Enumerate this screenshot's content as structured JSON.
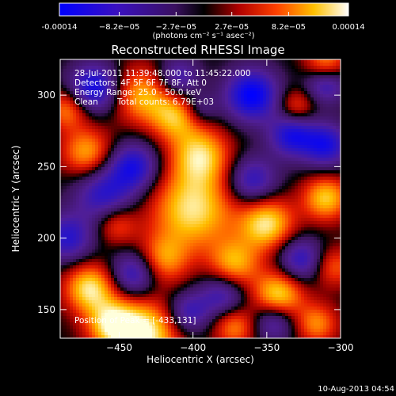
{
  "colors": {
    "background": "#000000",
    "text": "#ffffff",
    "colorbar_low": "#0000ff",
    "colorbar_mid": "#000000",
    "colorbar_high": "#ffffff"
  },
  "colorbar": {
    "tick_labels": [
      "-0.00014",
      "−8.2e−05",
      "−2.7e−05",
      "2.7e−05",
      "8.2e−05",
      "0.00014"
    ],
    "tick_values": [
      -0.00014,
      -8.2e-05,
      -2.7e-05,
      2.7e-05,
      8.2e-05,
      0.00014
    ],
    "range": [
      -0.00014,
      0.00014
    ],
    "units_label": "(photons cm⁻² s⁻¹ asec⁻²)"
  },
  "chart_data": {
    "type": "heatmap",
    "title": "Reconstructed RHESSI Image",
    "xlabel": "Heliocentric X (arcsec)",
    "ylabel": "Heliocentric Y (arcsec)",
    "xlim": [
      -490,
      -300
    ],
    "ylim": [
      130,
      325
    ],
    "x_ticks": [
      -450,
      -400,
      -350,
      -300
    ],
    "y_ticks": [
      150,
      200,
      250,
      300
    ],
    "x_tick_labels": [
      "−450",
      "−400",
      "−350",
      "−300"
    ],
    "y_tick_labels": [
      "150",
      "200",
      "250",
      "300"
    ],
    "peak": {
      "x": -433,
      "y": 131
    },
    "blobs": [
      {
        "x": -433,
        "y": 133,
        "w": 1.0,
        "s": 16
      },
      {
        "x": -455,
        "y": 140,
        "w": 0.8,
        "s": 12
      },
      {
        "x": -470,
        "y": 165,
        "w": 0.9,
        "s": 12
      },
      {
        "x": -400,
        "y": 220,
        "w": 0.9,
        "s": 20
      },
      {
        "x": -395,
        "y": 258,
        "w": 0.8,
        "s": 14
      },
      {
        "x": -412,
        "y": 285,
        "w": 0.7,
        "s": 12
      },
      {
        "x": -435,
        "y": 300,
        "w": 0.7,
        "s": 14
      },
      {
        "x": -472,
        "y": 260,
        "w": 0.7,
        "s": 12
      },
      {
        "x": -485,
        "y": 290,
        "w": 0.6,
        "s": 10
      },
      {
        "x": -350,
        "y": 210,
        "w": 0.9,
        "s": 13
      },
      {
        "x": -310,
        "y": 228,
        "w": 0.8,
        "s": 11
      },
      {
        "x": -310,
        "y": 320,
        "w": 0.9,
        "s": 10
      },
      {
        "x": -330,
        "y": 292,
        "w": 0.5,
        "s": 9
      },
      {
        "x": -342,
        "y": 160,
        "w": 0.9,
        "s": 12
      },
      {
        "x": -372,
        "y": 182,
        "w": 0.7,
        "s": 12
      },
      {
        "x": -372,
        "y": 138,
        "w": 0.6,
        "s": 10
      },
      {
        "x": -420,
        "y": 185,
        "w": 0.6,
        "s": 12
      },
      {
        "x": -452,
        "y": 210,
        "w": 0.5,
        "s": 10
      },
      {
        "x": -316,
        "y": 140,
        "w": 0.6,
        "s": 10
      },
      {
        "x": -305,
        "y": 180,
        "w": 0.5,
        "s": 10
      },
      {
        "x": -467,
        "y": 305,
        "w": -0.9,
        "s": 12
      },
      {
        "x": -460,
        "y": 230,
        "w": -0.7,
        "s": 14
      },
      {
        "x": -440,
        "y": 250,
        "w": -0.8,
        "s": 12
      },
      {
        "x": -360,
        "y": 300,
        "w": -1.0,
        "s": 13
      },
      {
        "x": -333,
        "y": 272,
        "w": -0.8,
        "s": 11
      },
      {
        "x": -310,
        "y": 310,
        "w": -0.9,
        "s": 10
      },
      {
        "x": -360,
        "y": 240,
        "w": -0.7,
        "s": 12
      },
      {
        "x": -485,
        "y": 200,
        "w": -0.7,
        "s": 12
      },
      {
        "x": -440,
        "y": 175,
        "w": -0.7,
        "s": 11
      },
      {
        "x": -380,
        "y": 160,
        "w": -0.6,
        "s": 11
      },
      {
        "x": -310,
        "y": 265,
        "w": -0.8,
        "s": 11
      },
      {
        "x": -327,
        "y": 185,
        "w": -0.7,
        "s": 11
      },
      {
        "x": -345,
        "y": 142,
        "w": -0.6,
        "s": 10
      },
      {
        "x": -403,
        "y": 148,
        "w": -0.6,
        "s": 10
      },
      {
        "x": -410,
        "y": 312,
        "w": -0.6,
        "s": 10
      },
      {
        "x": -395,
        "y": 290,
        "w": -0.4,
        "s": 8
      }
    ]
  },
  "annotations": {
    "time_range": "28-Jul-2011 11:39:48.000 to 11:45:22.000",
    "detectors": "Detectors: 4F 5F 6F 7F 8F, Att 0",
    "energy": "Energy Range: 25.0 - 50.0 keV",
    "algorithm": "Clean",
    "total_counts": "Total counts: 6.79E+03",
    "peak_position": "Position of Peak = [-433,131]"
  },
  "footer": {
    "date": "10-Aug-2013 04:54"
  }
}
